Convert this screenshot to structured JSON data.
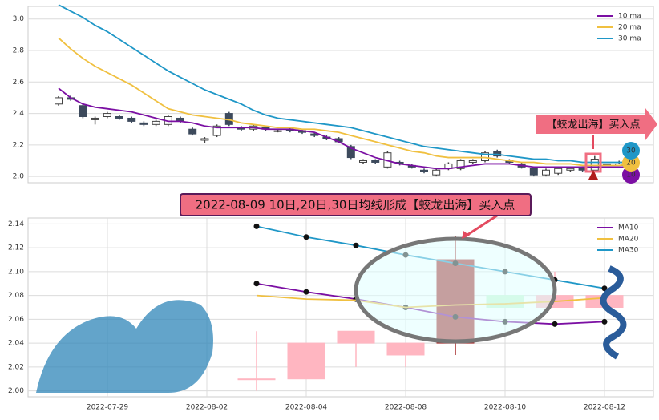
{
  "chart_data": [
    {
      "type": "candlestick",
      "open": [
        2.46,
        2.5,
        2.45,
        2.36,
        2.38,
        2.38,
        2.37,
        2.34,
        2.33,
        2.33,
        2.37,
        2.3,
        2.23,
        2.26,
        2.4,
        2.31,
        2.3,
        2.31,
        2.29,
        2.3,
        2.29,
        2.27,
        2.25,
        2.24,
        2.19,
        2.09,
        2.1,
        2.06,
        2.09,
        2.07,
        2.04,
        2.01,
        2.05,
        2.05,
        2.09,
        2.1,
        2.16,
        2.1,
        2.08,
        2.05,
        2.01,
        2.02,
        2.04,
        2.05,
        2.04,
        2.08,
        2.07,
        2.07
      ],
      "high": [
        2.51,
        2.52,
        2.46,
        2.38,
        2.41,
        2.39,
        2.38,
        2.35,
        2.36,
        2.39,
        2.38,
        2.31,
        2.25,
        2.33,
        2.41,
        2.32,
        2.33,
        2.32,
        2.3,
        2.31,
        2.3,
        2.28,
        2.26,
        2.25,
        2.2,
        2.11,
        2.11,
        2.16,
        2.1,
        2.08,
        2.05,
        2.05,
        2.09,
        2.11,
        2.11,
        2.16,
        2.17,
        2.11,
        2.09,
        2.06,
        2.05,
        2.06,
        2.06,
        2.06,
        2.13,
        2.08,
        2.1,
        2.08
      ],
      "low": [
        2.45,
        2.48,
        2.37,
        2.33,
        2.37,
        2.36,
        2.34,
        2.32,
        2.32,
        2.32,
        2.34,
        2.26,
        2.21,
        2.25,
        2.32,
        2.29,
        2.29,
        2.29,
        2.28,
        2.28,
        2.27,
        2.25,
        2.23,
        2.21,
        2.11,
        2.08,
        2.08,
        2.05,
        2.07,
        2.05,
        2.02,
        2.0,
        2.04,
        2.04,
        2.08,
        2.09,
        2.12,
        2.08,
        2.05,
        2.0,
        2.0,
        2.01,
        2.03,
        2.03,
        2.03,
        2.07,
        2.07,
        2.07
      ],
      "close": [
        2.5,
        2.49,
        2.38,
        2.37,
        2.4,
        2.37,
        2.35,
        2.33,
        2.35,
        2.38,
        2.35,
        2.27,
        2.24,
        2.32,
        2.33,
        2.3,
        2.32,
        2.3,
        2.29,
        2.29,
        2.28,
        2.26,
        2.24,
        2.22,
        2.12,
        2.1,
        2.09,
        2.15,
        2.08,
        2.06,
        2.03,
        2.04,
        2.08,
        2.1,
        2.1,
        2.15,
        2.13,
        2.09,
        2.06,
        2.01,
        2.04,
        2.05,
        2.05,
        2.04,
        2.11,
        2.07,
        2.08,
        2.08
      ],
      "up_color": "#ffffff",
      "down_color": "#3d4a5c",
      "series": [
        {
          "name": "10 ma",
          "color": "#7b0fa3",
          "values": [
            2.56,
            2.5,
            2.46,
            2.44,
            2.43,
            2.42,
            2.41,
            2.39,
            2.37,
            2.35,
            2.35,
            2.34,
            2.32,
            2.31,
            2.31,
            2.31,
            2.31,
            2.3,
            2.3,
            2.3,
            2.29,
            2.28,
            2.25,
            2.22,
            2.18,
            2.15,
            2.12,
            2.1,
            2.08,
            2.07,
            2.06,
            2.05,
            2.05,
            2.06,
            2.07,
            2.08,
            2.08,
            2.08,
            2.07,
            2.06,
            2.06,
            2.06,
            2.06,
            2.06,
            2.06,
            2.06,
            2.06,
            2.06
          ]
        },
        {
          "name": "20 ma",
          "color": "#f0c040",
          "values": [
            2.88,
            2.81,
            2.75,
            2.7,
            2.66,
            2.62,
            2.58,
            2.53,
            2.48,
            2.43,
            2.41,
            2.39,
            2.38,
            2.37,
            2.36,
            2.34,
            2.33,
            2.32,
            2.31,
            2.31,
            2.3,
            2.3,
            2.29,
            2.28,
            2.26,
            2.24,
            2.22,
            2.2,
            2.18,
            2.16,
            2.15,
            2.13,
            2.12,
            2.12,
            2.12,
            2.12,
            2.11,
            2.1,
            2.09,
            2.09,
            2.08,
            2.08,
            2.08,
            2.07,
            2.07,
            2.07,
            2.07,
            2.08
          ]
        },
        {
          "name": "30 ma",
          "color": "#1f97c7",
          "values": [
            3.09,
            3.05,
            3.01,
            2.96,
            2.92,
            2.87,
            2.82,
            2.77,
            2.72,
            2.67,
            2.63,
            2.59,
            2.55,
            2.52,
            2.49,
            2.46,
            2.42,
            2.39,
            2.37,
            2.36,
            2.35,
            2.34,
            2.33,
            2.32,
            2.31,
            2.29,
            2.27,
            2.25,
            2.23,
            2.21,
            2.19,
            2.18,
            2.17,
            2.16,
            2.15,
            2.14,
            2.14,
            2.13,
            2.12,
            2.11,
            2.11,
            2.1,
            2.1,
            2.09,
            2.09,
            2.09,
            2.09,
            2.09
          ]
        }
      ],
      "ylim": [
        1.96,
        3.08
      ],
      "yticks": [
        {
          "value": 2,
          "label": "2.0"
        },
        2.2,
        2.4,
        2.6,
        2.8,
        {
          "value": 3,
          "label": "3.0"
        }
      ],
      "grid": true,
      "legend": "upper right",
      "annotation": "【蛟龙出海】买入点",
      "badges": [
        "30",
        "20",
        "10"
      ]
    },
    {
      "type": "candlestick",
      "title": "2022-08-09 10日,20日,30日均线形成【蛟龙出海】买入点",
      "categories": [
        "2022-07-29",
        null,
        "2022-08-02",
        null,
        "2022-08-04",
        null,
        "2022-08-08",
        null,
        "2022-08-10",
        null,
        "2022-08-12"
      ],
      "open": [
        null,
        null,
        null,
        2.01,
        2.01,
        2.04,
        2.03,
        2.04,
        2.08,
        2.07,
        2.07
      ],
      "high": [
        null,
        null,
        null,
        2.05,
        2.04,
        2.05,
        2.04,
        2.13,
        2.08,
        2.1,
        2.08
      ],
      "low": [
        null,
        null,
        null,
        2.0,
        2.01,
        2.02,
        2.02,
        2.03,
        2.07,
        2.07,
        2.07
      ],
      "close": [
        null,
        null,
        null,
        2.01,
        2.04,
        2.05,
        2.04,
        2.11,
        2.07,
        2.08,
        2.08
      ],
      "up_color": "#ffb6c1",
      "down_color": "#c8f5d0",
      "highlight_color": "#a52a2a",
      "series": [
        {
          "name": "MA10",
          "color": "#7b0fa3",
          "markers": true,
          "values": [
            null,
            null,
            null,
            2.09,
            2.083,
            2.077,
            2.07,
            2.062,
            2.058,
            2.056,
            2.058
          ]
        },
        {
          "name": "MA20",
          "color": "#f0c040",
          "values": [
            null,
            null,
            null,
            2.08,
            2.077,
            2.076,
            2.07,
            2.072,
            2.073,
            2.075,
            2.078
          ]
        },
        {
          "name": "MA30",
          "color": "#1f97c7",
          "markers": true,
          "values": [
            null,
            null,
            null,
            2.138,
            2.129,
            2.122,
            2.114,
            2.107,
            2.1,
            2.093,
            2.086
          ]
        }
      ],
      "ylim": [
        1.995,
        2.145
      ],
      "yticks": [
        {
          "value": 2,
          "label": "2.00"
        },
        2.02,
        2.04,
        2.06,
        2.08,
        {
          "value": 2.1,
          "label": "2.10"
        },
        2.12,
        2.14
      ],
      "grid": true,
      "legend": "upper right"
    }
  ]
}
